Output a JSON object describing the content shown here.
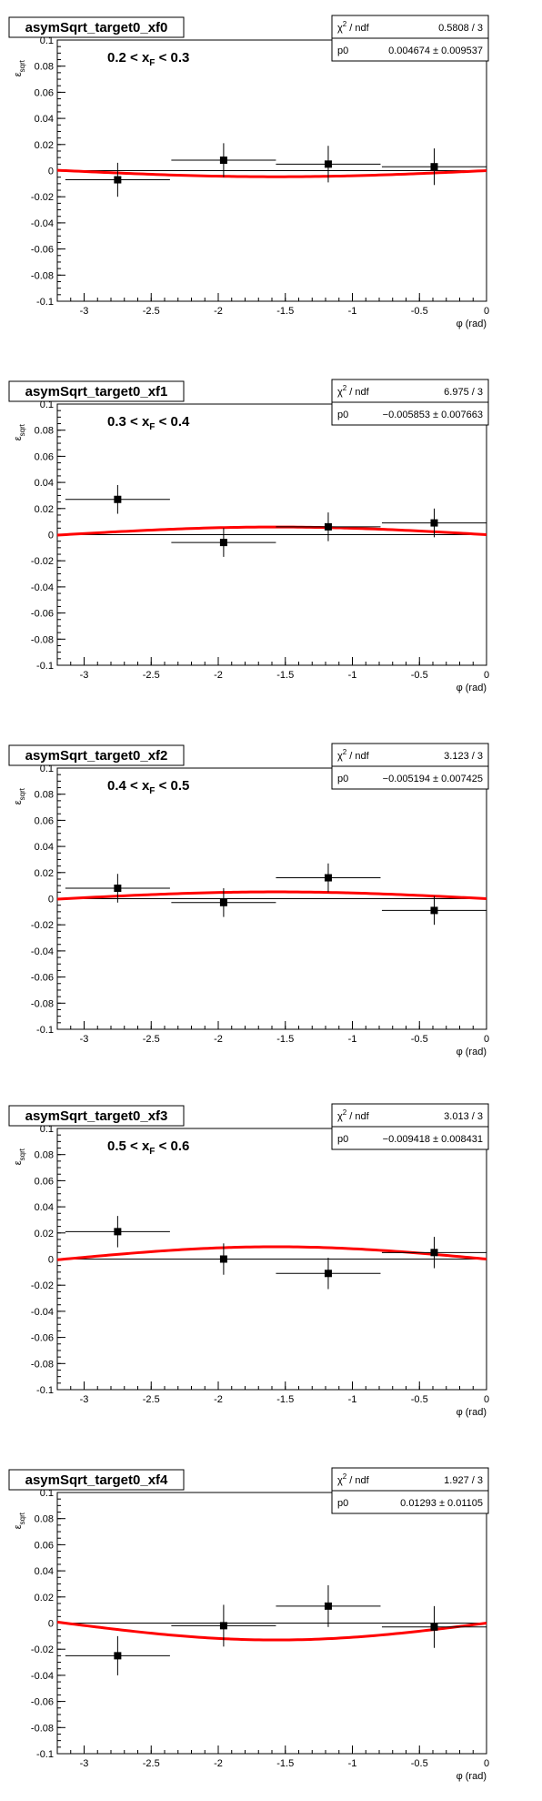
{
  "chart_data": [
    {
      "type": "scatter",
      "title": "asymSqrt_target0_xf0",
      "range_label": "0.2 < x",
      "range_label_sub": "F",
      "range_label_tail": " < 0.3",
      "xlabel": "φ (rad)",
      "ylabel": "ε",
      "ylabel_sub": "sqrt",
      "xlim": [
        -3.2,
        0
      ],
      "ylim": [
        -0.1,
        0.1
      ],
      "x_ticks": [
        "-3",
        "-2.5",
        "-2",
        "-1.5",
        "-1",
        "-0.5",
        "0"
      ],
      "y_ticks": [
        "-0.1",
        "-0.08",
        "-0.06",
        "-0.04",
        "-0.02",
        "0",
        "0.02",
        "0.04",
        "0.06",
        "0.08",
        "0.1"
      ],
      "stats": {
        "row1_label": "χ",
        "row1_sup": "2",
        "row1_rest": " / ndf",
        "row1_value": "0.5808 / 3",
        "row2_label": "p0",
        "row2_value": "0.004674 ± 0.009537"
      },
      "fit": {
        "p0": 0.004674
      },
      "series": [
        {
          "x": [
            -2.75,
            -1.96,
            -1.18,
            -0.39
          ],
          "y": [
            -0.007,
            0.008,
            0.005,
            0.003
          ],
          "yerr": [
            0.013,
            0.013,
            0.014,
            0.014
          ],
          "xerr": [
            0.39,
            0.39,
            0.39,
            0.39
          ]
        }
      ]
    },
    {
      "type": "scatter",
      "title": "asymSqrt_target0_xf1",
      "range_label": "0.3 < x",
      "range_label_sub": "F",
      "range_label_tail": " < 0.4",
      "xlabel": "φ (rad)",
      "ylabel": "ε",
      "ylabel_sub": "sqrt",
      "xlim": [
        -3.2,
        0
      ],
      "ylim": [
        -0.1,
        0.1
      ],
      "x_ticks": [
        "-3",
        "-2.5",
        "-2",
        "-1.5",
        "-1",
        "-0.5",
        "0"
      ],
      "y_ticks": [
        "-0.1",
        "-0.08",
        "-0.06",
        "-0.04",
        "-0.02",
        "0",
        "0.02",
        "0.04",
        "0.06",
        "0.08",
        "0.1"
      ],
      "stats": {
        "row1_label": "χ",
        "row1_sup": "2",
        "row1_rest": " / ndf",
        "row1_value": "6.975 / 3",
        "row2_label": "p0",
        "row2_value": "−0.005853 ± 0.007663"
      },
      "fit": {
        "p0": -0.005853
      },
      "series": [
        {
          "x": [
            -2.75,
            -1.96,
            -1.18,
            -0.39
          ],
          "y": [
            0.027,
            -0.006,
            0.006,
            0.009
          ],
          "yerr": [
            0.011,
            0.011,
            0.011,
            0.011
          ],
          "xerr": [
            0.39,
            0.39,
            0.39,
            0.39
          ]
        }
      ]
    },
    {
      "type": "scatter",
      "title": "asymSqrt_target0_xf2",
      "range_label": "0.4 < x",
      "range_label_sub": "F",
      "range_label_tail": " < 0.5",
      "xlabel": "φ (rad)",
      "ylabel": "ε",
      "ylabel_sub": "sqrt",
      "xlim": [
        -3.2,
        0
      ],
      "ylim": [
        -0.1,
        0.1
      ],
      "x_ticks": [
        "-3",
        "-2.5",
        "-2",
        "-1.5",
        "-1",
        "-0.5",
        "0"
      ],
      "y_ticks": [
        "-0.1",
        "-0.08",
        "-0.06",
        "-0.04",
        "-0.02",
        "0",
        "0.02",
        "0.04",
        "0.06",
        "0.08",
        "0.1"
      ],
      "stats": {
        "row1_label": "χ",
        "row1_sup": "2",
        "row1_rest": " / ndf",
        "row1_value": "3.123 / 3",
        "row2_label": "p0",
        "row2_value": "−0.005194 ± 0.007425"
      },
      "fit": {
        "p0": -0.005194
      },
      "series": [
        {
          "x": [
            -2.75,
            -1.96,
            -1.18,
            -0.39
          ],
          "y": [
            0.008,
            -0.003,
            0.016,
            -0.009
          ],
          "yerr": [
            0.011,
            0.011,
            0.011,
            0.011
          ],
          "xerr": [
            0.39,
            0.39,
            0.39,
            0.39
          ]
        }
      ]
    },
    {
      "type": "scatter",
      "title": "asymSqrt_target0_xf3",
      "range_label": "0.5 < x",
      "range_label_sub": "F",
      "range_label_tail": " < 0.6",
      "xlabel": "φ (rad)",
      "ylabel": "ε",
      "ylabel_sub": "sqrt",
      "xlim": [
        -3.2,
        0
      ],
      "ylim": [
        -0.1,
        0.1
      ],
      "x_ticks": [
        "-3",
        "-2.5",
        "-2",
        "-1.5",
        "-1",
        "-0.5",
        "0"
      ],
      "y_ticks": [
        "-0.1",
        "-0.08",
        "-0.06",
        "-0.04",
        "-0.02",
        "0",
        "0.02",
        "0.04",
        "0.06",
        "0.08",
        "0.1"
      ],
      "stats": {
        "row1_label": "χ",
        "row1_sup": "2",
        "row1_rest": " / ndf",
        "row1_value": "3.013 / 3",
        "row2_label": "p0",
        "row2_value": "−0.009418 ± 0.008431"
      },
      "fit": {
        "p0": -0.009418
      },
      "series": [
        {
          "x": [
            -2.75,
            -1.96,
            -1.18,
            -0.39
          ],
          "y": [
            0.021,
            0.0,
            -0.011,
            0.005
          ],
          "yerr": [
            0.012,
            0.012,
            0.012,
            0.012
          ],
          "xerr": [
            0.39,
            0.39,
            0.39,
            0.39
          ]
        }
      ]
    },
    {
      "type": "scatter",
      "title": "asymSqrt_target0_xf4",
      "range_label": "",
      "range_label_sub": "",
      "range_label_tail": "",
      "xlabel": "φ (rad)",
      "ylabel": "ε",
      "ylabel_sub": "sqrt",
      "xlim": [
        -3.2,
        0
      ],
      "ylim": [
        -0.1,
        0.1
      ],
      "x_ticks": [
        "-3",
        "-2.5",
        "-2",
        "-1.5",
        "-1",
        "-0.5",
        "0"
      ],
      "y_ticks": [
        "-0.1",
        "-0.08",
        "-0.06",
        "-0.04",
        "-0.02",
        "0",
        "0.02",
        "0.04",
        "0.06",
        "0.08",
        "0.1"
      ],
      "stats": {
        "row1_label": "χ",
        "row1_sup": "2",
        "row1_rest": " / ndf",
        "row1_value": "1.927 / 3",
        "row2_label": "p0",
        "row2_value": "0.01293 ± 0.01105"
      },
      "fit": {
        "p0": 0.01293
      },
      "series": [
        {
          "x": [
            -2.75,
            -1.96,
            -1.18,
            -0.39
          ],
          "y": [
            -0.025,
            -0.002,
            0.013,
            -0.003
          ],
          "yerr": [
            0.015,
            0.016,
            0.016,
            0.016
          ],
          "xerr": [
            0.39,
            0.39,
            0.39,
            0.39
          ]
        }
      ]
    }
  ]
}
